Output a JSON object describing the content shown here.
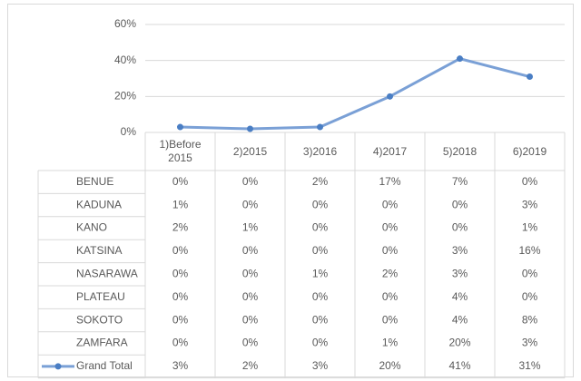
{
  "chart_data": {
    "type": "line",
    "categories": [
      "1)Before 2015",
      "2)2015",
      "3)2016",
      "4)2017",
      "5)2018",
      "6)2019"
    ],
    "series": [
      {
        "name": "Grand Total",
        "color": "#7aa0d6",
        "marker_color": "#4a7ec4",
        "values": [
          3,
          2,
          3,
          20,
          41,
          31
        ],
        "value_labels": [
          "3%",
          "2%",
          "3%",
          "20%",
          "41%",
          "31%"
        ]
      }
    ],
    "ylim": [
      0,
      60
    ],
    "yticks": [
      {
        "value": 0,
        "label": "0%"
      },
      {
        "value": 20,
        "label": "20%"
      },
      {
        "value": 40,
        "label": "40%"
      },
      {
        "value": 60,
        "label": "60%"
      }
    ],
    "grid": true,
    "data_table": {
      "rows": [
        {
          "name": "BENUE",
          "values": [
            0,
            0,
            2,
            17,
            7,
            0
          ],
          "value_labels": [
            "0%",
            "0%",
            "2%",
            "17%",
            "7%",
            "0%"
          ]
        },
        {
          "name": "KADUNA",
          "values": [
            1,
            0,
            0,
            0,
            0,
            3
          ],
          "value_labels": [
            "1%",
            "0%",
            "0%",
            "0%",
            "0%",
            "3%"
          ]
        },
        {
          "name": "KANO",
          "values": [
            2,
            1,
            0,
            0,
            0,
            1
          ],
          "value_labels": [
            "2%",
            "1%",
            "0%",
            "0%",
            "0%",
            "1%"
          ]
        },
        {
          "name": "KATSINA",
          "values": [
            0,
            0,
            0,
            0,
            3,
            16
          ],
          "value_labels": [
            "0%",
            "0%",
            "0%",
            "0%",
            "3%",
            "16%"
          ]
        },
        {
          "name": "NASARAWA",
          "values": [
            0,
            0,
            1,
            2,
            3,
            0
          ],
          "value_labels": [
            "0%",
            "0%",
            "1%",
            "2%",
            "3%",
            "0%"
          ]
        },
        {
          "name": "PLATEAU",
          "values": [
            0,
            0,
            0,
            0,
            4,
            0
          ],
          "value_labels": [
            "0%",
            "0%",
            "0%",
            "0%",
            "4%",
            "0%"
          ]
        },
        {
          "name": "SOKOTO",
          "values": [
            0,
            0,
            0,
            0,
            4,
            8
          ],
          "value_labels": [
            "0%",
            "0%",
            "0%",
            "0%",
            "4%",
            "8%"
          ]
        },
        {
          "name": "ZAMFARA",
          "values": [
            0,
            0,
            0,
            1,
            20,
            3
          ],
          "value_labels": [
            "0%",
            "0%",
            "0%",
            "1%",
            "20%",
            "3%"
          ]
        }
      ]
    }
  }
}
